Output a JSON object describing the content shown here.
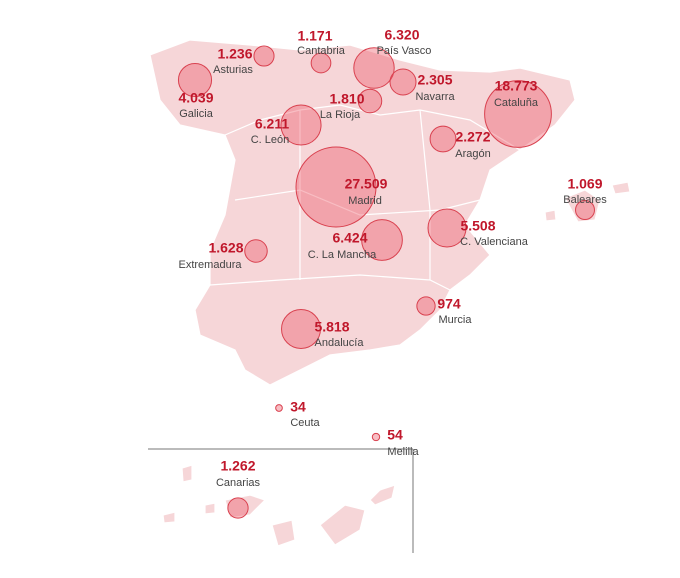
{
  "regions": [
    {
      "name": "Asturias",
      "value": 1236,
      "label": "1.236"
    },
    {
      "name": "Cantabria",
      "value": 1171,
      "label": "1.171"
    },
    {
      "name": "País Vasco",
      "value": 6320,
      "label": "6.320"
    },
    {
      "name": "Galicia",
      "value": 4039,
      "label": "4.039"
    },
    {
      "name": "Navarra",
      "value": 2305,
      "label": "2.305"
    },
    {
      "name": "Cataluña",
      "value": 18773,
      "label": "18.773"
    },
    {
      "name": "La Rioja",
      "value": 1810,
      "label": "1.810"
    },
    {
      "name": "C. León",
      "value": 6211,
      "label": "6.211"
    },
    {
      "name": "Aragón",
      "value": 2272,
      "label": "2.272"
    },
    {
      "name": "Madrid",
      "value": 27509,
      "label": "27.509"
    },
    {
      "name": "Baleares",
      "value": 1069,
      "label": "1.069"
    },
    {
      "name": "C. Valenciana",
      "value": 5508,
      "label": "5.508"
    },
    {
      "name": "Extremadura",
      "value": 1628,
      "label": "1.628"
    },
    {
      "name": "C. La Mancha",
      "value": 6424,
      "label": "6.424"
    },
    {
      "name": "Murcia",
      "value": 974,
      "label": "974"
    },
    {
      "name": "Andalucía",
      "value": 5818,
      "label": "5.818"
    },
    {
      "name": "Ceuta",
      "value": 34,
      "label": "34"
    },
    {
      "name": "Melilla",
      "value": 54,
      "label": "54"
    },
    {
      "name": "Canarias",
      "value": 1262,
      "label": "1.262"
    }
  ]
}
